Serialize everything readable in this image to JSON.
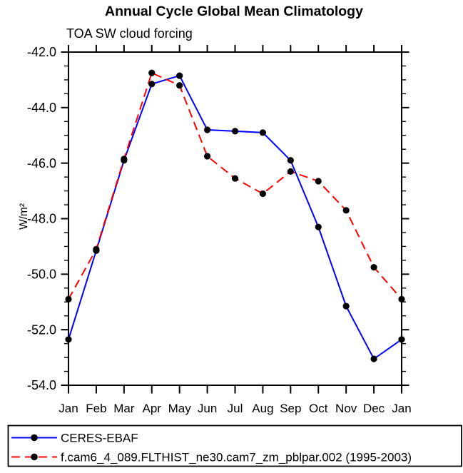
{
  "chart_data": {
    "type": "line",
    "title": "Annual Cycle Global Mean Climatology",
    "subtitle": "TOA SW cloud forcing",
    "ylabel": "W/m²",
    "xlabel": "",
    "categories": [
      "Jan",
      "Feb",
      "Mar",
      "Apr",
      "May",
      "Jun",
      "Jul",
      "Aug",
      "Sep",
      "Oct",
      "Nov",
      "Dec",
      "Jan"
    ],
    "ylim": [
      -54.0,
      -42.0
    ],
    "ytick_major_interval": 2.0,
    "ytick_minor_interval": 0.5,
    "ytick_label_decimals": 1,
    "grid": false,
    "legend_position": "bottom-left-box",
    "axis_color": "#000000",
    "background_color": "#FFFFFF",
    "series": [
      {
        "name": "CERES-EBAF",
        "color": "#0000FF",
        "line_style": "solid",
        "marker": "filled-circle",
        "marker_color": "#000000",
        "values": [
          -52.35,
          -49.15,
          -45.9,
          -43.15,
          -42.85,
          -44.8,
          -44.85,
          -44.9,
          -45.9,
          -48.3,
          -51.15,
          -53.05,
          -52.35
        ]
      },
      {
        "name": "f.cam6_4_089.FLTHIST_ne30.cam7_zm_pblpar.002 (1995-2003)",
        "color": "#FF0000",
        "line_style": "dashed",
        "marker": "filled-circle",
        "marker_color": "#000000",
        "values": [
          -50.9,
          -49.1,
          -45.85,
          -42.75,
          -43.2,
          -45.75,
          -46.55,
          -47.1,
          -46.3,
          -46.65,
          -47.7,
          -49.75,
          -50.9
        ]
      }
    ]
  }
}
